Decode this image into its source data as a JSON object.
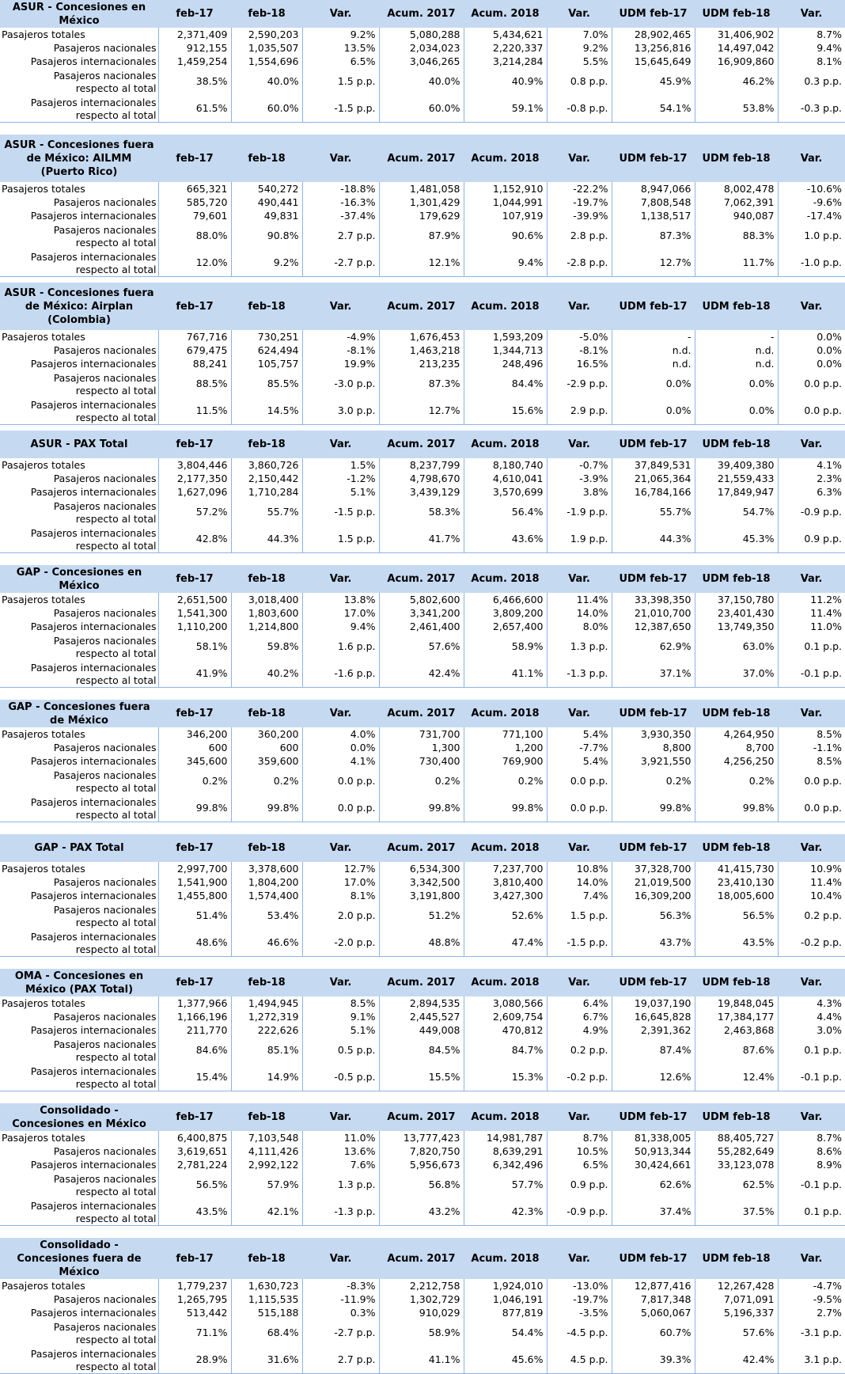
{
  "columns": [
    "feb-17",
    "feb-18",
    "Var.",
    "Acum. 2017",
    "Acum. 2018",
    "Var.",
    "UDM feb-17",
    "UDM feb-18",
    "Var."
  ],
  "row_labels": {
    "total": "Pasajeros totales",
    "nacionales": "Pasajeros nacionales",
    "internacionales": "Pasajeros internacionales",
    "pct_nac_1": "Pasajeros nacionales",
    "pct_nac_2": "respecto al total",
    "pct_int_1": "Pasajeros internacionales",
    "pct_int_2": "respecto al total"
  },
  "sections": [
    {
      "title": "ASUR - Concesiones en México",
      "rows": {
        "total": [
          "2,371,409",
          "2,590,203",
          "9.2%",
          "5,080,288",
          "5,434,621",
          "7.0%",
          "28,902,465",
          "31,406,902",
          "8.7%"
        ],
        "nacionales": [
          "912,155",
          "1,035,507",
          "13.5%",
          "2,034,023",
          "2,220,337",
          "9.2%",
          "13,256,816",
          "14,497,042",
          "9.4%"
        ],
        "internacionales": [
          "1,459,254",
          "1,554,696",
          "6.5%",
          "3,046,265",
          "3,214,284",
          "5.5%",
          "15,645,649",
          "16,909,860",
          "8.1%"
        ],
        "pct_nac": [
          "38.5%",
          "40.0%",
          "1.5 p.p.",
          "40.0%",
          "40.9%",
          "0.8 p.p.",
          "45.9%",
          "46.2%",
          "0.3 p.p."
        ],
        "pct_int": [
          "61.5%",
          "60.0%",
          "-1.5 p.p.",
          "60.0%",
          "59.1%",
          "-0.8 p.p.",
          "54.1%",
          "53.8%",
          "-0.3 p.p."
        ]
      }
    },
    {
      "title": "ASUR - Concesiones fuera de México: AILMM (Puerto Rico)",
      "rows": {
        "total": [
          "665,321",
          "540,272",
          "-18.8%",
          "1,481,058",
          "1,152,910",
          "-22.2%",
          "8,947,066",
          "8,002,478",
          "-10.6%"
        ],
        "nacionales": [
          "585,720",
          "490,441",
          "-16.3%",
          "1,301,429",
          "1,044,991",
          "-19.7%",
          "7,808,548",
          "7,062,391",
          "-9.6%"
        ],
        "internacionales": [
          "79,601",
          "49,831",
          "-37.4%",
          "179,629",
          "107,919",
          "-39.9%",
          "1,138,517",
          "940,087",
          "-17.4%"
        ],
        "pct_nac": [
          "88.0%",
          "90.8%",
          "2.7 p.p.",
          "87.9%",
          "90.6%",
          "2.8 p.p.",
          "87.3%",
          "88.3%",
          "1.0 p.p."
        ],
        "pct_int": [
          "12.0%",
          "9.2%",
          "-2.7 p.p.",
          "12.1%",
          "9.4%",
          "-2.8 p.p.",
          "12.7%",
          "11.7%",
          "-1.0 p.p."
        ]
      }
    },
    {
      "title": "ASUR - Concesiones fuera de México: Airplan (Colombia)",
      "rows": {
        "total": [
          "767,716",
          "730,251",
          "-4.9%",
          "1,676,453",
          "1,593,209",
          "-5.0%",
          "-",
          "-",
          "0.0%"
        ],
        "nacionales": [
          "679,475",
          "624,494",
          "-8.1%",
          "1,463,218",
          "1,344,713",
          "-8.1%",
          "n.d.",
          "n.d.",
          "0.0%"
        ],
        "internacionales": [
          "88,241",
          "105,757",
          "19.9%",
          "213,235",
          "248,496",
          "16.5%",
          "n.d.",
          "n.d.",
          "0.0%"
        ],
        "pct_nac": [
          "88.5%",
          "85.5%",
          "-3.0 p.p.",
          "87.3%",
          "84.4%",
          "-2.9 p.p.",
          "0.0%",
          "0.0%",
          "0.0 p.p."
        ],
        "pct_int": [
          "11.5%",
          "14.5%",
          "3.0 p.p.",
          "12.7%",
          "15.6%",
          "2.9 p.p.",
          "0.0%",
          "0.0%",
          "0.0 p.p."
        ]
      }
    },
    {
      "title": "ASUR - PAX Total",
      "rows": {
        "total": [
          "3,804,446",
          "3,860,726",
          "1.5%",
          "8,237,799",
          "8,180,740",
          "-0.7%",
          "37,849,531",
          "39,409,380",
          "4.1%"
        ],
        "nacionales": [
          "2,177,350",
          "2,150,442",
          "-1.2%",
          "4,798,670",
          "4,610,041",
          "-3.9%",
          "21,065,364",
          "21,559,433",
          "2.3%"
        ],
        "internacionales": [
          "1,627,096",
          "1,710,284",
          "5.1%",
          "3,439,129",
          "3,570,699",
          "3.8%",
          "16,784,166",
          "17,849,947",
          "6.3%"
        ],
        "pct_nac": [
          "57.2%",
          "55.7%",
          "-1.5 p.p.",
          "58.3%",
          "56.4%",
          "-1.9 p.p.",
          "55.7%",
          "54.7%",
          "-0.9 p.p."
        ],
        "pct_int": [
          "42.8%",
          "44.3%",
          "1.5 p.p.",
          "41.7%",
          "43.6%",
          "1.9 p.p.",
          "44.3%",
          "45.3%",
          "0.9 p.p."
        ]
      }
    },
    {
      "title": "GAP - Concesiones en México",
      "rows": {
        "total": [
          "2,651,500",
          "3,018,400",
          "13.8%",
          "5,802,600",
          "6,466,600",
          "11.4%",
          "33,398,350",
          "37,150,780",
          "11.2%"
        ],
        "nacionales": [
          "1,541,300",
          "1,803,600",
          "17.0%",
          "3,341,200",
          "3,809,200",
          "14.0%",
          "21,010,700",
          "23,401,430",
          "11.4%"
        ],
        "internacionales": [
          "1,110,200",
          "1,214,800",
          "9.4%",
          "2,461,400",
          "2,657,400",
          "8.0%",
          "12,387,650",
          "13,749,350",
          "11.0%"
        ],
        "pct_nac": [
          "58.1%",
          "59.8%",
          "1.6 p.p.",
          "57.6%",
          "58.9%",
          "1.3 p.p.",
          "62.9%",
          "63.0%",
          "0.1 p.p."
        ],
        "pct_int": [
          "41.9%",
          "40.2%",
          "-1.6 p.p.",
          "42.4%",
          "41.1%",
          "-1.3 p.p.",
          "37.1%",
          "37.0%",
          "-0.1 p.p."
        ]
      }
    },
    {
      "title": "GAP - Concesiones fuera de México",
      "rows": {
        "total": [
          "346,200",
          "360,200",
          "4.0%",
          "731,700",
          "771,100",
          "5.4%",
          "3,930,350",
          "4,264,950",
          "8.5%"
        ],
        "nacionales": [
          "600",
          "600",
          "0.0%",
          "1,300",
          "1,200",
          "-7.7%",
          "8,800",
          "8,700",
          "-1.1%"
        ],
        "internacionales": [
          "345,600",
          "359,600",
          "4.1%",
          "730,400",
          "769,900",
          "5.4%",
          "3,921,550",
          "4,256,250",
          "8.5%"
        ],
        "pct_nac": [
          "0.2%",
          "0.2%",
          "0.0 p.p.",
          "0.2%",
          "0.2%",
          "0.0 p.p.",
          "0.2%",
          "0.2%",
          "0.0 p.p."
        ],
        "pct_int": [
          "99.8%",
          "99.8%",
          "0.0 p.p.",
          "99.8%",
          "99.8%",
          "0.0 p.p.",
          "99.8%",
          "99.8%",
          "0.0 p.p."
        ]
      }
    },
    {
      "title": "GAP - PAX Total",
      "rows": {
        "total": [
          "2,997,700",
          "3,378,600",
          "12.7%",
          "6,534,300",
          "7,237,700",
          "10.8%",
          "37,328,700",
          "41,415,730",
          "10.9%"
        ],
        "nacionales": [
          "1,541,900",
          "1,804,200",
          "17.0%",
          "3,342,500",
          "3,810,400",
          "14.0%",
          "21,019,500",
          "23,410,130",
          "11.4%"
        ],
        "internacionales": [
          "1,455,800",
          "1,574,400",
          "8.1%",
          "3,191,800",
          "3,427,300",
          "7.4%",
          "16,309,200",
          "18,005,600",
          "10.4%"
        ],
        "pct_nac": [
          "51.4%",
          "53.4%",
          "2.0 p.p.",
          "51.2%",
          "52.6%",
          "1.5 p.p.",
          "56.3%",
          "56.5%",
          "0.2 p.p."
        ],
        "pct_int": [
          "48.6%",
          "46.6%",
          "-2.0 p.p.",
          "48.8%",
          "47.4%",
          "-1.5 p.p.",
          "43.7%",
          "43.5%",
          "-0.2 p.p."
        ]
      }
    },
    {
      "title": "OMA - Concesiones en México (PAX Total)",
      "rows": {
        "total": [
          "1,377,966",
          "1,494,945",
          "8.5%",
          "2,894,535",
          "3,080,566",
          "6.4%",
          "19,037,190",
          "19,848,045",
          "4.3%"
        ],
        "nacionales": [
          "1,166,196",
          "1,272,319",
          "9.1%",
          "2,445,527",
          "2,609,754",
          "6.7%",
          "16,645,828",
          "17,384,177",
          "4.4%"
        ],
        "internacionales": [
          "211,770",
          "222,626",
          "5.1%",
          "449,008",
          "470,812",
          "4.9%",
          "2,391,362",
          "2,463,868",
          "3.0%"
        ],
        "pct_nac": [
          "84.6%",
          "85.1%",
          "0.5 p.p.",
          "84.5%",
          "84.7%",
          "0.2 p.p.",
          "87.4%",
          "87.6%",
          "0.1 p.p."
        ],
        "pct_int": [
          "15.4%",
          "14.9%",
          "-0.5 p.p.",
          "15.5%",
          "15.3%",
          "-0.2 p.p.",
          "12.6%",
          "12.4%",
          "-0.1 p.p."
        ]
      }
    },
    {
      "title": "Consolidado - Concesiones en México",
      "rows": {
        "total": [
          "6,400,875",
          "7,103,548",
          "11.0%",
          "13,777,423",
          "14,981,787",
          "8.7%",
          "81,338,005",
          "88,405,727",
          "8.7%"
        ],
        "nacionales": [
          "3,619,651",
          "4,111,426",
          "13.6%",
          "7,820,750",
          "8,639,291",
          "10.5%",
          "50,913,344",
          "55,282,649",
          "8.6%"
        ],
        "internacionales": [
          "2,781,224",
          "2,992,122",
          "7.6%",
          "5,956,673",
          "6,342,496",
          "6.5%",
          "30,424,661",
          "33,123,078",
          "8.9%"
        ],
        "pct_nac": [
          "56.5%",
          "57.9%",
          "1.3 p.p.",
          "56.8%",
          "57.7%",
          "0.9 p.p.",
          "62.6%",
          "62.5%",
          "-0.1 p.p."
        ],
        "pct_int": [
          "43.5%",
          "42.1%",
          "-1.3 p.p.",
          "43.2%",
          "42.3%",
          "-0.9 p.p.",
          "37.4%",
          "37.5%",
          "0.1 p.p."
        ]
      }
    },
    {
      "title": "Consolidado - Concesiones fuera de México",
      "rows": {
        "total": [
          "1,779,237",
          "1,630,723",
          "-8.3%",
          "2,212,758",
          "1,924,010",
          "-13.0%",
          "12,877,416",
          "12,267,428",
          "-4.7%"
        ],
        "nacionales": [
          "1,265,795",
          "1,115,535",
          "-11.9%",
          "1,302,729",
          "1,046,191",
          "-19.7%",
          "7,817,348",
          "7,071,091",
          "-9.5%"
        ],
        "internacionales": [
          "513,442",
          "515,188",
          "0.3%",
          "910,029",
          "877,819",
          "-3.5%",
          "5,060,067",
          "5,196,337",
          "2.7%"
        ],
        "pct_nac": [
          "71.1%",
          "68.4%",
          "-2.7 p.p.",
          "58.9%",
          "54.4%",
          "-4.5 p.p.",
          "60.7%",
          "57.6%",
          "-3.1 p.p."
        ],
        "pct_int": [
          "28.9%",
          "31.6%",
          "2.7 p.p.",
          "41.1%",
          "45.6%",
          "4.5 p.p.",
          "39.3%",
          "42.4%",
          "3.1 p.p."
        ]
      }
    }
  ]
}
